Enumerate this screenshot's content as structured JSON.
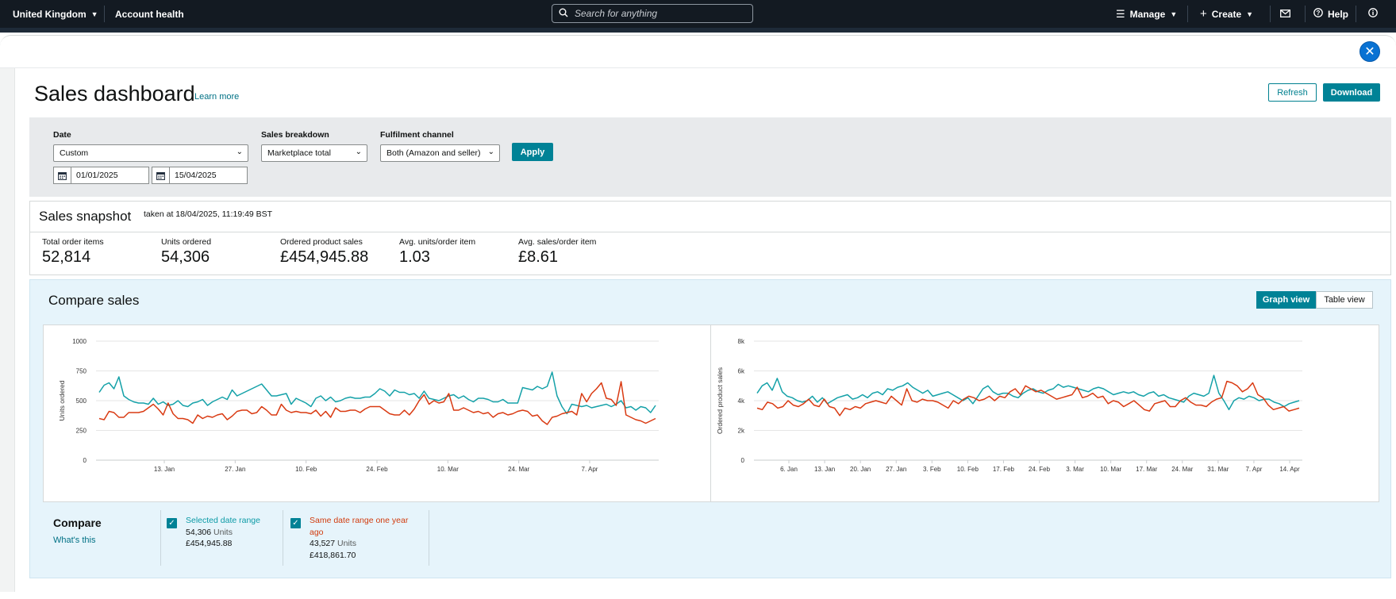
{
  "topbar": {
    "marketplace": "United Kingdom",
    "account_health": "Account health",
    "search_placeholder": "Search for anything",
    "manage": "Manage",
    "create": "Create",
    "help": "Help"
  },
  "page": {
    "title": "Sales dashboard",
    "learn_more": "Learn more",
    "refresh": "Refresh",
    "download": "Download"
  },
  "filters": {
    "date_label": "Date",
    "date_value": "Custom",
    "date_from": "01/01/2025",
    "date_to": "15/04/2025",
    "breakdown_label": "Sales breakdown",
    "breakdown_value": "Marketplace total",
    "fulfilment_label": "Fulfilment channel",
    "fulfilment_value": "Both (Amazon and seller)",
    "apply": "Apply"
  },
  "snapshot": {
    "title": "Sales snapshot",
    "taken": "taken at 18/04/2025, 11:19:49 BST",
    "metrics": [
      {
        "label": "Total order items",
        "value": "52,814"
      },
      {
        "label": "Units ordered",
        "value": "54,306"
      },
      {
        "label": "Ordered product sales",
        "value": "£454,945.88"
      },
      {
        "label": "Avg. units/order item",
        "value": "1.03"
      },
      {
        "label": "Avg. sales/order item",
        "value": "£8.61"
      }
    ]
  },
  "compare": {
    "title": "Compare sales",
    "graph_view": "Graph view",
    "table_view": "Table view",
    "legend_title": "Compare",
    "whats_this": "What's this",
    "series_a": {
      "name": "Selected date range",
      "units": "54,306",
      "units_word": "Units",
      "sales": "£454,945.88"
    },
    "series_b": {
      "name_line1": "Same date range one year",
      "name_line2": "ago",
      "units": "43,527",
      "units_word": "Units",
      "sales": "£418,861.70"
    }
  },
  "colors": {
    "selected": "#14a1a8",
    "previous": "#d93a12",
    "accent": "#008296"
  },
  "chart_data": [
    {
      "type": "line",
      "ylabel": "Units ordered",
      "ylim": [
        0,
        1000
      ],
      "yticks": [
        "0",
        "250",
        "500",
        "750",
        "1000"
      ],
      "xticks": [
        "13. Jan",
        "27. Jan",
        "10. Feb",
        "24. Feb",
        "10. Mar",
        "24. Mar",
        "7. Apr"
      ],
      "grid": true,
      "series": [
        {
          "name": "Selected date range",
          "color": "#14a1a8",
          "values": [
            570,
            630,
            650,
            600,
            700,
            540,
            510,
            490,
            480,
            480,
            470,
            520,
            470,
            490,
            460,
            470,
            500,
            460,
            450,
            480,
            490,
            510,
            460,
            490,
            510,
            530,
            510,
            590,
            540,
            560,
            580,
            600,
            620,
            640,
            590,
            540,
            540,
            550,
            560,
            470,
            520,
            500,
            480,
            450,
            520,
            540,
            500,
            530,
            490,
            500,
            520,
            530,
            520,
            520,
            530,
            530,
            560,
            600,
            580,
            540,
            590,
            570,
            570,
            550,
            560,
            520,
            580,
            520,
            510,
            500,
            520,
            540,
            550,
            520,
            540,
            510,
            490,
            520,
            520,
            510,
            490,
            490,
            510,
            480,
            480,
            480,
            610,
            600,
            590,
            620,
            600,
            620,
            740,
            540,
            450,
            390,
            470,
            460,
            450,
            460,
            440,
            450,
            460,
            470,
            450,
            470,
            500,
            440,
            450,
            420,
            450,
            440,
            400,
            460
          ]
        },
        {
          "name": "Same date range one year ago",
          "color": "#d93a12",
          "values": [
            350,
            340,
            410,
            400,
            360,
            360,
            400,
            400,
            400,
            410,
            440,
            470,
            430,
            380,
            480,
            390,
            350,
            350,
            340,
            310,
            380,
            350,
            370,
            360,
            380,
            390,
            340,
            370,
            410,
            420,
            420,
            390,
            400,
            450,
            420,
            380,
            380,
            470,
            420,
            400,
            410,
            400,
            400,
            390,
            420,
            370,
            410,
            360,
            440,
            410,
            410,
            420,
            420,
            400,
            430,
            450,
            450,
            450,
            420,
            390,
            380,
            380,
            420,
            380,
            430,
            500,
            550,
            470,
            500,
            480,
            490,
            560,
            420,
            420,
            440,
            420,
            400,
            410,
            390,
            400,
            360,
            390,
            400,
            380,
            390,
            410,
            420,
            410,
            370,
            380,
            330,
            300,
            360,
            370,
            390,
            400,
            410,
            380,
            560,
            490,
            560,
            600,
            650,
            520,
            510,
            460,
            660,
            380,
            360,
            340,
            330,
            310,
            330,
            350
          ]
        }
      ]
    },
    {
      "type": "line",
      "ylabel": "Ordered product sales",
      "ylim": [
        0,
        8000
      ],
      "yticks": [
        "0",
        "2k",
        "4k",
        "6k",
        "8k"
      ],
      "xticks": [
        "6. Jan",
        "13. Jan",
        "20. Jan",
        "27. Jan",
        "3. Feb",
        "10. Feb",
        "17. Feb",
        "24. Feb",
        "3. Mar",
        "10. Mar",
        "17. Mar",
        "24. Mar",
        "31. Mar",
        "7. Apr",
        "14. Apr"
      ],
      "grid": true,
      "series": [
        {
          "name": "Selected date range",
          "color": "#14a1a8",
          "values": [
            4500,
            5000,
            5200,
            4700,
            5500,
            4600,
            4300,
            4200,
            4000,
            3900,
            4000,
            4300,
            3900,
            4200,
            3800,
            4000,
            4200,
            4300,
            4400,
            4100,
            4200,
            4400,
            4200,
            4500,
            4600,
            4400,
            4800,
            4700,
            4900,
            5000,
            5200,
            4900,
            4700,
            4500,
            4700,
            4300,
            4400,
            4500,
            4600,
            4400,
            4200,
            4000,
            4200,
            3800,
            4300,
            4800,
            5000,
            4600,
            4400,
            4500,
            4500,
            4300,
            4200,
            4500,
            4700,
            4800,
            4600,
            4500,
            4700,
            4800,
            5100,
            4900,
            5000,
            4900,
            4800,
            4700,
            4600,
            4800,
            4900,
            4800,
            4600,
            4400,
            4500,
            4600,
            4500,
            4600,
            4400,
            4300,
            4500,
            4600,
            4300,
            4400,
            4200,
            4100,
            4000,
            3900,
            4300,
            4500,
            4400,
            4300,
            4500,
            5700,
            4500,
            4000,
            3400,
            4000,
            4200,
            4100,
            4300,
            4200,
            4000,
            4100,
            4100,
            3900,
            3800,
            3600,
            3800,
            3900,
            4000
          ]
        },
        {
          "name": "Same date range one year ago",
          "color": "#d93a12",
          "values": [
            3500,
            3400,
            3900,
            3800,
            3500,
            3600,
            4000,
            3700,
            3600,
            3800,
            4100,
            3700,
            3600,
            4100,
            3600,
            3500,
            3000,
            3500,
            3400,
            3600,
            3500,
            3800,
            3900,
            4000,
            3900,
            3800,
            4300,
            4000,
            3700,
            4800,
            4000,
            3900,
            4100,
            4000,
            4000,
            3900,
            3700,
            3500,
            4000,
            3800,
            4100,
            4300,
            4200,
            4000,
            4100,
            4300,
            4000,
            4300,
            4200,
            4600,
            4800,
            4400,
            5000,
            4800,
            4600,
            4700,
            4500,
            4300,
            4100,
            4200,
            4300,
            4400,
            4900,
            4200,
            4300,
            4500,
            4200,
            4300,
            3800,
            4000,
            3900,
            3600,
            3800,
            4000,
            3700,
            3400,
            3300,
            3800,
            3900,
            4000,
            3600,
            3600,
            4000,
            4200,
            3900,
            3700,
            3700,
            3600,
            3900,
            4100,
            4200,
            5300,
            5200,
            5000,
            4600,
            4800,
            5200,
            4400,
            4200,
            3700,
            3400,
            3500,
            3600,
            3300,
            3400,
            3500
          ]
        }
      ]
    }
  ]
}
